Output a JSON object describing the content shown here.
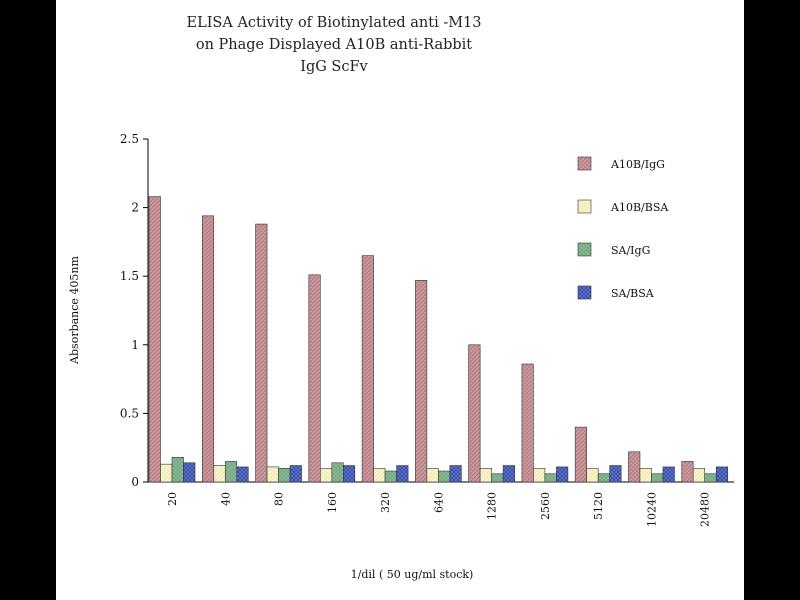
{
  "chart_data": {
    "type": "bar",
    "title": [
      "ELISA Activity of Biotinylated anti -M13",
      "on Phage Displayed A10B anti-Rabbit",
      "IgG ScFv"
    ],
    "xlabel": "1/dil ( 50 ug/ml stock)",
    "ylabel": "Absorbance 405nm",
    "ylim": [
      0,
      2.5
    ],
    "yticks": [
      "0",
      "0.5",
      "1",
      "1.5",
      "2",
      "2.5"
    ],
    "grid": false,
    "legend_position": "top-right",
    "categories": [
      "20",
      "40",
      "80",
      "160",
      "320",
      "640",
      "1280",
      "2560",
      "5120",
      "10240",
      "20480"
    ],
    "series": [
      {
        "name": "A10B/IgG",
        "color": "#c9979c",
        "values": [
          2.08,
          1.94,
          1.88,
          1.51,
          1.65,
          1.47,
          1.0,
          0.86,
          0.4,
          0.22,
          0.15
        ]
      },
      {
        "name": "A10B/BSA",
        "color": "#f8f2c8",
        "values": [
          0.13,
          0.12,
          0.11,
          0.1,
          0.1,
          0.1,
          0.1,
          0.1,
          0.1,
          0.1,
          0.1
        ]
      },
      {
        "name": "SA/IgG",
        "color": "#8fbf99",
        "values": [
          0.18,
          0.15,
          0.1,
          0.14,
          0.08,
          0.08,
          0.06,
          0.06,
          0.06,
          0.06,
          0.06
        ]
      },
      {
        "name": "SA/BSA",
        "color": "#2f47a6",
        "values": [
          0.14,
          0.11,
          0.12,
          0.12,
          0.12,
          0.12,
          0.12,
          0.11,
          0.12,
          0.11,
          0.11
        ]
      }
    ]
  }
}
